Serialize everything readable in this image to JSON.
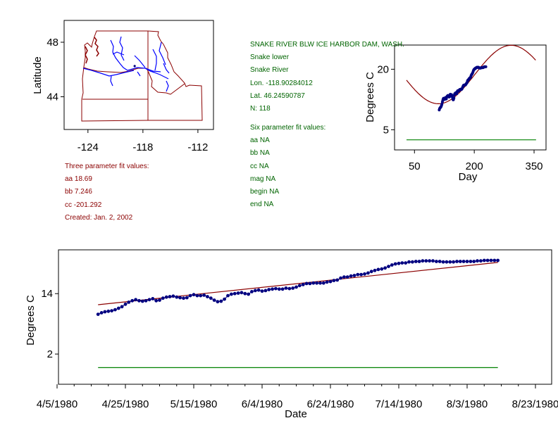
{
  "colors": {
    "frame": "#000000",
    "map_border": "#8b0000",
    "rivers": "#0000ff",
    "fit_line": "#8b0000",
    "points": "#000080",
    "baseline": "#008000",
    "text_red": "#8b0000",
    "text_green": "#006400"
  },
  "station": {
    "name": "SNAKE RIVER BLW ICE HARBOR DAM, WASH.",
    "segment": "Snake lower",
    "river": "Snake River",
    "lon": "Lon. -118.90284012",
    "lat": "Lat. 46.24590787",
    "n": "N: 118"
  },
  "six_param": {
    "heading": "Six parameter fit values:",
    "aa": "aa NA",
    "bb": "bb NA",
    "cc": "cc NA",
    "mag": "mag NA",
    "begin": "begin NA",
    "end": "end NA"
  },
  "three_param": {
    "heading": "Three parameter fit values:",
    "aa": "aa 18.69",
    "bb": "bb 7.246",
    "cc": "cc -201.292",
    "created": "Created:   Jan. 2, 2002"
  },
  "chart_data": [
    {
      "id": "map",
      "type": "map",
      "xlabel": "",
      "ylabel": "Latitude",
      "x_ticks": [
        "-124",
        "-118",
        "-112"
      ],
      "y_ticks": [
        "48",
        "44"
      ],
      "x_tick_values": [
        -124,
        -118,
        -112
      ],
      "y_tick_values": [
        48,
        44
      ],
      "xlim": [
        -126.6,
        -110.3
      ],
      "ylim": [
        41.6,
        49.6
      ],
      "station_marker": {
        "lon": -118.9,
        "lat": 46.25
      }
    },
    {
      "id": "seasonal",
      "type": "line",
      "xlabel": "Day",
      "ylabel": "Degrees C",
      "x_ticks": [
        "50",
        "200",
        "350"
      ],
      "y_ticks": [
        "20",
        "5"
      ],
      "x_tick_values": [
        50,
        200,
        350
      ],
      "y_tick_values": [
        20,
        5
      ],
      "xlim": [
        0,
        380
      ],
      "ylim": [
        0,
        26
      ],
      "fit": {
        "aa": 18.69,
        "bb": 7.246,
        "cc": -201.292,
        "day_range": [
          30,
          355
        ]
      },
      "baseline_value": 2.5,
      "baseline_range": [
        30,
        355
      ],
      "observed_day_range": [
        112,
        230
      ]
    },
    {
      "id": "timeseries",
      "type": "scatter",
      "xlabel": "Date",
      "ylabel": "Degrees C",
      "x_ticks": [
        "4/5/1980",
        "4/25/1980",
        "5/15/1980",
        "6/4/1980",
        "6/24/1980",
        "7/14/1980",
        "8/3/1980",
        "8/23/1980"
      ],
      "x_tick_days": [
        0,
        20,
        40,
        60,
        80,
        100,
        120,
        140
      ],
      "y_ticks": [
        "14",
        "2"
      ],
      "y_tick_values": [
        14,
        2
      ],
      "xlim": [
        0,
        140
      ],
      "ylim": [
        -4.0,
        22.7
      ],
      "fit_line": {
        "x": [
          12,
          129
        ],
        "y": [
          11.8,
          20.2
        ]
      },
      "baseline": {
        "x": [
          12,
          129
        ],
        "y": -0.7
      },
      "series": [
        {
          "name": "Observed",
          "x": [
            12,
            13,
            14,
            15,
            16,
            17,
            18,
            19,
            20,
            21,
            22,
            23,
            24,
            25,
            26,
            27,
            28,
            29,
            30,
            31,
            32,
            33,
            34,
            35,
            36,
            37,
            38,
            39,
            40,
            41,
            42,
            43,
            44,
            45,
            46,
            47,
            48,
            49,
            50,
            51,
            52,
            53,
            54,
            55,
            56,
            57,
            58,
            59,
            60,
            61,
            62,
            63,
            64,
            65,
            66,
            67,
            68,
            69,
            70,
            71,
            72,
            73,
            74,
            75,
            76,
            77,
            78,
            79,
            80,
            81,
            82,
            83,
            84,
            85,
            86,
            87,
            88,
            89,
            90,
            91,
            92,
            93,
            94,
            95,
            96,
            97,
            98,
            99,
            100,
            101,
            102,
            103,
            104,
            105,
            106,
            107,
            108,
            109,
            110,
            111,
            112,
            113,
            114,
            115,
            116,
            117,
            118,
            119,
            120,
            121,
            122,
            123,
            124,
            125,
            126,
            127,
            128,
            129
          ],
          "y": [
            9.9,
            10.2,
            10.4,
            10.5,
            10.6,
            10.8,
            11.1,
            11.4,
            11.9,
            12.3,
            12.6,
            12.8,
            12.6,
            12.5,
            12.6,
            12.8,
            13.0,
            12.6,
            12.7,
            13.1,
            13.3,
            13.4,
            13.5,
            13.3,
            13.2,
            13.1,
            13.2,
            13.6,
            13.8,
            13.6,
            13.6,
            13.7,
            13.4,
            13.1,
            12.7,
            12.4,
            12.5,
            12.9,
            13.6,
            13.9,
            14.0,
            14.1,
            14.2,
            14.0,
            13.9,
            14.4,
            14.6,
            14.7,
            14.5,
            14.6,
            14.8,
            14.9,
            15.0,
            14.9,
            14.9,
            15.1,
            15.0,
            15.1,
            15.3,
            15.6,
            15.8,
            16.0,
            16.0,
            16.1,
            16.1,
            16.1,
            16.1,
            16.3,
            16.4,
            16.6,
            16.7,
            17.1,
            17.3,
            17.3,
            17.5,
            17.6,
            17.8,
            17.8,
            17.9,
            18.1,
            18.4,
            18.6,
            18.8,
            18.9,
            19.1,
            19.4,
            19.7,
            19.9,
            20.0,
            20.1,
            20.1,
            20.3,
            20.3,
            20.4,
            20.4,
            20.5,
            20.5,
            20.5,
            20.5,
            20.4,
            20.4,
            20.3,
            20.3,
            20.3,
            20.3,
            20.4,
            20.4,
            20.4,
            20.4,
            20.4,
            20.4,
            20.5,
            20.5,
            20.6,
            20.6,
            20.6,
            20.6,
            20.6
          ]
        }
      ]
    }
  ]
}
